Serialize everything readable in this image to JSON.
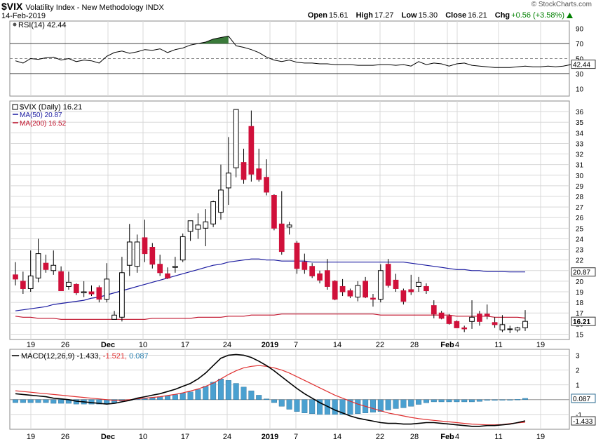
{
  "header": {
    "symbol": "$VIX",
    "description": "Volatility Index - New Methodology  INDX",
    "date": "14-Feb-2019",
    "watermark": "© StockCharts.com",
    "open_label": "Open",
    "open": "15.61",
    "high_label": "High",
    "high": "17.27",
    "low_label": "Low",
    "low": "15.30",
    "close_label": "Close",
    "close": "16.21",
    "chg_label": "Chg",
    "chg": "+0.56 (+3.58%)",
    "chg_icon": "up-triangle-icon"
  },
  "colors": {
    "up": "#000000",
    "down": "#d0103a",
    "ma50": "#1a1aa0",
    "ma200": "#c0102a",
    "macd_line": "#000000",
    "signal_line": "#e03030",
    "histogram": "#4aa0d0",
    "rsi_line": "#000000",
    "rsi_fill": "#3a7a3a",
    "grid": "#d8d8d8"
  },
  "chart_data": [
    {
      "type": "line",
      "panel": "RSI",
      "legend": "RSI(14) 42.44",
      "yticks": [
        10,
        30,
        50,
        70,
        90
      ],
      "ylim": [
        0,
        100
      ],
      "reference_lines": [
        30,
        50,
        70
      ],
      "last_value_label": "42.44",
      "values": [
        47,
        44,
        50,
        49,
        51,
        52,
        48,
        50,
        46,
        48,
        47,
        44,
        53,
        58,
        60,
        57,
        59,
        62,
        61,
        63,
        58,
        62,
        64,
        68,
        70,
        72,
        76,
        78,
        80,
        67,
        65,
        62,
        58,
        52,
        48,
        46,
        48,
        45,
        44,
        44,
        43,
        43,
        42,
        42,
        42,
        41,
        41,
        41,
        42,
        42,
        41,
        42,
        40,
        46,
        42,
        44,
        43,
        40,
        43,
        44,
        41,
        40,
        39,
        38,
        38,
        38,
        39,
        40,
        39,
        39,
        40,
        39,
        40,
        42
      ]
    },
    {
      "type": "candlestick",
      "panel": "Price",
      "legend": "$VIX (Daily) 16.21",
      "ma50_label": "MA(50) 20.87",
      "ma200_label": "MA(200) 16.52",
      "yticks": [
        15,
        16,
        17,
        18,
        19,
        20,
        21,
        22,
        23,
        24,
        25,
        26,
        27,
        28,
        29,
        30,
        31,
        32,
        33,
        34,
        35,
        36
      ],
      "ylim": [
        14.5,
        37
      ],
      "last_value_label": "16.21",
      "ma50_end_label": "20.87",
      "xtick_labels": [
        "19",
        "26",
        "Dec",
        "10",
        "17",
        "24",
        "2019",
        "7",
        "14",
        "22",
        "28",
        "Feb",
        "4",
        "11",
        "19"
      ],
      "candles": [
        [
          20.6,
          21.8,
          19.6,
          20.2
        ],
        [
          20.0,
          20.9,
          18.8,
          19.3
        ],
        [
          19.3,
          22.9,
          19.0,
          20.5
        ],
        [
          20.3,
          24.0,
          19.9,
          22.6
        ],
        [
          21.7,
          22.5,
          20.8,
          21.1
        ],
        [
          21.0,
          22.9,
          20.6,
          21.5
        ],
        [
          20.9,
          21.4,
          19.1,
          19.1
        ],
        [
          19.5,
          20.9,
          19.2,
          19.9
        ],
        [
          19.7,
          19.8,
          18.7,
          18.9
        ],
        [
          18.9,
          20.0,
          18.5,
          19.0
        ],
        [
          19.0,
          19.6,
          18.6,
          18.8
        ],
        [
          19.4,
          19.6,
          18.0,
          18.3
        ],
        [
          18.3,
          21.7,
          18.0,
          20.2
        ],
        [
          16.4,
          17.2,
          16.4,
          16.8
        ],
        [
          16.6,
          22.3,
          16.2,
          20.8
        ],
        [
          21.5,
          25.4,
          20.5,
          23.7
        ],
        [
          21.4,
          24.4,
          20.8,
          23.7
        ],
        [
          24.1,
          25.8,
          21.8,
          22.6
        ],
        [
          23.2,
          23.6,
          21.2,
          21.6
        ],
        [
          21.6,
          22.5,
          20.5,
          20.8
        ],
        [
          20.7,
          21.3,
          20.2,
          20.3
        ],
        [
          21.3,
          22.3,
          20.8,
          21.4
        ],
        [
          22.0,
          24.5,
          21.8,
          24.2
        ],
        [
          24.7,
          25.6,
          23.8,
          25.7
        ],
        [
          24.9,
          26.4,
          24.0,
          25.3
        ],
        [
          25.0,
          26.8,
          23.3,
          25.6
        ],
        [
          25.4,
          27.6,
          25.1,
          27.5
        ],
        [
          26.5,
          31.0,
          25.8,
          28.6
        ],
        [
          28.8,
          33.6,
          27.2,
          30.2
        ],
        [
          30.7,
          36.2,
          29.8,
          36.2
        ],
        [
          31.2,
          32.5,
          29.2,
          29.6
        ],
        [
          34.6,
          36.1,
          29.4,
          30.1
        ],
        [
          30.6,
          32.5,
          29.4,
          29.6
        ],
        [
          29.8,
          31.5,
          28.1,
          28.4
        ],
        [
          28.1,
          28.2,
          24.8,
          25.0
        ],
        [
          25.4,
          28.5,
          22.5,
          22.8
        ],
        [
          25.1,
          25.6,
          24.4,
          25.3
        ],
        [
          23.6,
          23.8,
          20.7,
          21.2
        ],
        [
          21.8,
          22.6,
          20.7,
          21.1
        ],
        [
          21.4,
          21.7,
          20.3,
          20.5
        ],
        [
          20.7,
          21.0,
          19.8,
          20.1
        ],
        [
          21.0,
          22.1,
          19.2,
          19.5
        ],
        [
          20.0,
          20.1,
          18.2,
          18.3
        ],
        [
          19.5,
          20.2,
          18.6,
          19.0
        ],
        [
          19.1,
          19.3,
          18.4,
          18.6
        ],
        [
          18.5,
          20.0,
          18.1,
          19.6
        ],
        [
          20.0,
          20.4,
          18.4,
          18.5
        ],
        [
          18.4,
          18.8,
          17.6,
          18.3
        ],
        [
          18.3,
          21.6,
          18.0,
          21.0
        ],
        [
          21.6,
          22.1,
          19.4,
          19.6
        ],
        [
          20.1,
          20.7,
          19.0,
          19.3
        ],
        [
          19.1,
          19.3,
          17.8,
          18.1
        ],
        [
          19.2,
          20.6,
          18.7,
          19.0
        ],
        [
          19.5,
          20.4,
          19.0,
          19.9
        ],
        [
          19.5,
          19.8,
          18.8,
          19.1
        ],
        [
          17.7,
          18.2,
          16.5,
          16.9
        ],
        [
          17.0,
          17.2,
          16.4,
          16.5
        ],
        [
          16.7,
          16.9,
          15.9,
          16.0
        ],
        [
          16.2,
          16.3,
          15.6,
          15.6
        ],
        [
          15.6,
          15.8,
          15.2,
          15.5
        ],
        [
          16.2,
          18.2,
          15.5,
          16.6
        ],
        [
          16.9,
          17.2,
          15.8,
          16.2
        ],
        [
          16.9,
          17.8,
          16.4,
          16.7
        ],
        [
          16.1,
          16.6,
          15.6,
          15.9
        ],
        [
          15.4,
          16.8,
          15.2,
          15.9
        ],
        [
          15.5,
          15.8,
          15.1,
          15.5
        ],
        [
          15.4,
          15.7,
          15.2,
          15.6
        ],
        [
          15.61,
          17.27,
          15.3,
          16.21
        ]
      ],
      "ma50": [
        17.2,
        17.3,
        17.4,
        17.5,
        17.6,
        17.8,
        17.9,
        18.0,
        18.1,
        18.2,
        18.4,
        18.5,
        18.7,
        18.9,
        19.1,
        19.3,
        19.5,
        19.7,
        19.9,
        20.1,
        20.3,
        20.5,
        20.7,
        20.9,
        21.1,
        21.3,
        21.5,
        21.6,
        21.8,
        21.9,
        22.0,
        22.1,
        22.1,
        22.0,
        22.0,
        21.9,
        21.9,
        21.9,
        21.9,
        21.8,
        21.8,
        21.8,
        21.8,
        21.8,
        21.8,
        21.8,
        21.8,
        21.8,
        21.8,
        21.8,
        21.8,
        21.8,
        21.7,
        21.6,
        21.5,
        21.4,
        21.3,
        21.2,
        21.1,
        21.1,
        21.0,
        21.0,
        20.9,
        20.9,
        20.9,
        20.87,
        20.87,
        20.87
      ],
      "ma200": [
        16.7,
        16.6,
        16.6,
        16.5,
        16.5,
        16.5,
        16.4,
        16.4,
        16.4,
        16.4,
        16.4,
        16.4,
        16.4,
        16.4,
        16.4,
        16.4,
        16.4,
        16.4,
        16.5,
        16.5,
        16.5,
        16.5,
        16.5,
        16.5,
        16.6,
        16.6,
        16.6,
        16.6,
        16.7,
        16.7,
        16.7,
        16.8,
        16.8,
        16.8,
        16.8,
        16.9,
        16.9,
        16.9,
        16.9,
        16.9,
        16.9,
        16.9,
        16.9,
        16.9,
        16.9,
        16.9,
        16.9,
        16.9,
        16.8,
        16.8,
        16.8,
        16.8,
        16.8,
        16.8,
        16.8,
        16.8,
        16.8,
        16.8,
        16.7,
        16.7,
        16.7,
        16.7,
        16.7,
        16.6,
        16.6,
        16.6,
        16.6,
        16.52
      ]
    },
    {
      "type": "line",
      "panel": "MACD",
      "legend_prefix": "MACD(12,26,9)",
      "legend_macd": "-1.433",
      "legend_signal": "-1.521",
      "legend_hist": "0.087",
      "yticks": [
        -1,
        0,
        1,
        2,
        3
      ],
      "ylim": [
        -2.0,
        3.4
      ],
      "last_hist_label": "0.087",
      "last_macd_label": "-1.433",
      "xtick_labels": [
        "19",
        "26",
        "Dec",
        "10",
        "17",
        "24",
        "2019",
        "7",
        "14",
        "22",
        "28",
        "Feb",
        "4",
        "11",
        "19"
      ],
      "macd": [
        0.4,
        0.35,
        0.3,
        0.25,
        0.2,
        0.1,
        0.05,
        0.0,
        -0.1,
        -0.15,
        -0.2,
        -0.25,
        -0.3,
        -0.25,
        -0.15,
        -0.05,
        0.1,
        0.2,
        0.3,
        0.4,
        0.55,
        0.7,
        0.9,
        1.1,
        1.4,
        1.8,
        2.3,
        2.8,
        3.0,
        3.05,
        3.0,
        2.85,
        2.6,
        2.3,
        1.95,
        1.55,
        1.15,
        0.75,
        0.4,
        0.1,
        -0.2,
        -0.45,
        -0.7,
        -0.9,
        -1.1,
        -1.25,
        -1.35,
        -1.45,
        -1.55,
        -1.6,
        -1.6,
        -1.65,
        -1.65,
        -1.6,
        -1.55,
        -1.55,
        -1.6,
        -1.65,
        -1.7,
        -1.75,
        -1.8,
        -1.8,
        -1.75,
        -1.75,
        -1.7,
        -1.65,
        -1.55,
        -1.433
      ],
      "signal": [
        0.6,
        0.55,
        0.5,
        0.45,
        0.4,
        0.35,
        0.3,
        0.25,
        0.2,
        0.15,
        0.1,
        0.05,
        0.0,
        -0.05,
        -0.05,
        0.0,
        0.05,
        0.1,
        0.15,
        0.2,
        0.28,
        0.36,
        0.46,
        0.58,
        0.72,
        0.9,
        1.12,
        1.4,
        1.7,
        1.95,
        2.15,
        2.25,
        2.3,
        2.25,
        2.15,
        2.0,
        1.8,
        1.55,
        1.3,
        1.05,
        0.8,
        0.55,
        0.3,
        0.1,
        -0.1,
        -0.3,
        -0.45,
        -0.6,
        -0.75,
        -0.9,
        -1.0,
        -1.1,
        -1.2,
        -1.28,
        -1.34,
        -1.4,
        -1.45,
        -1.5,
        -1.55,
        -1.6,
        -1.65,
        -1.68,
        -1.7,
        -1.7,
        -1.68,
        -1.62,
        -1.57,
        -1.521
      ],
      "histogram": [
        -0.2,
        -0.2,
        -0.2,
        -0.2,
        -0.2,
        -0.25,
        -0.25,
        -0.25,
        -0.3,
        -0.3,
        -0.3,
        -0.3,
        -0.3,
        -0.2,
        -0.1,
        -0.05,
        0.05,
        0.1,
        0.15,
        0.2,
        0.27,
        0.34,
        0.44,
        0.52,
        0.68,
        0.9,
        1.18,
        1.4,
        1.3,
        1.1,
        0.85,
        0.6,
        0.3,
        0.05,
        -0.2,
        -0.45,
        -0.65,
        -0.8,
        -0.9,
        -0.95,
        -1.0,
        -1.0,
        -1.0,
        -1.0,
        -1.0,
        -0.95,
        -0.9,
        -0.85,
        -0.8,
        -0.7,
        -0.6,
        -0.55,
        -0.45,
        -0.32,
        -0.21,
        -0.15,
        -0.15,
        -0.15,
        -0.15,
        -0.15,
        -0.15,
        -0.12,
        -0.05,
        -0.05,
        -0.02,
        -0.03,
        0.02,
        0.087
      ]
    }
  ]
}
